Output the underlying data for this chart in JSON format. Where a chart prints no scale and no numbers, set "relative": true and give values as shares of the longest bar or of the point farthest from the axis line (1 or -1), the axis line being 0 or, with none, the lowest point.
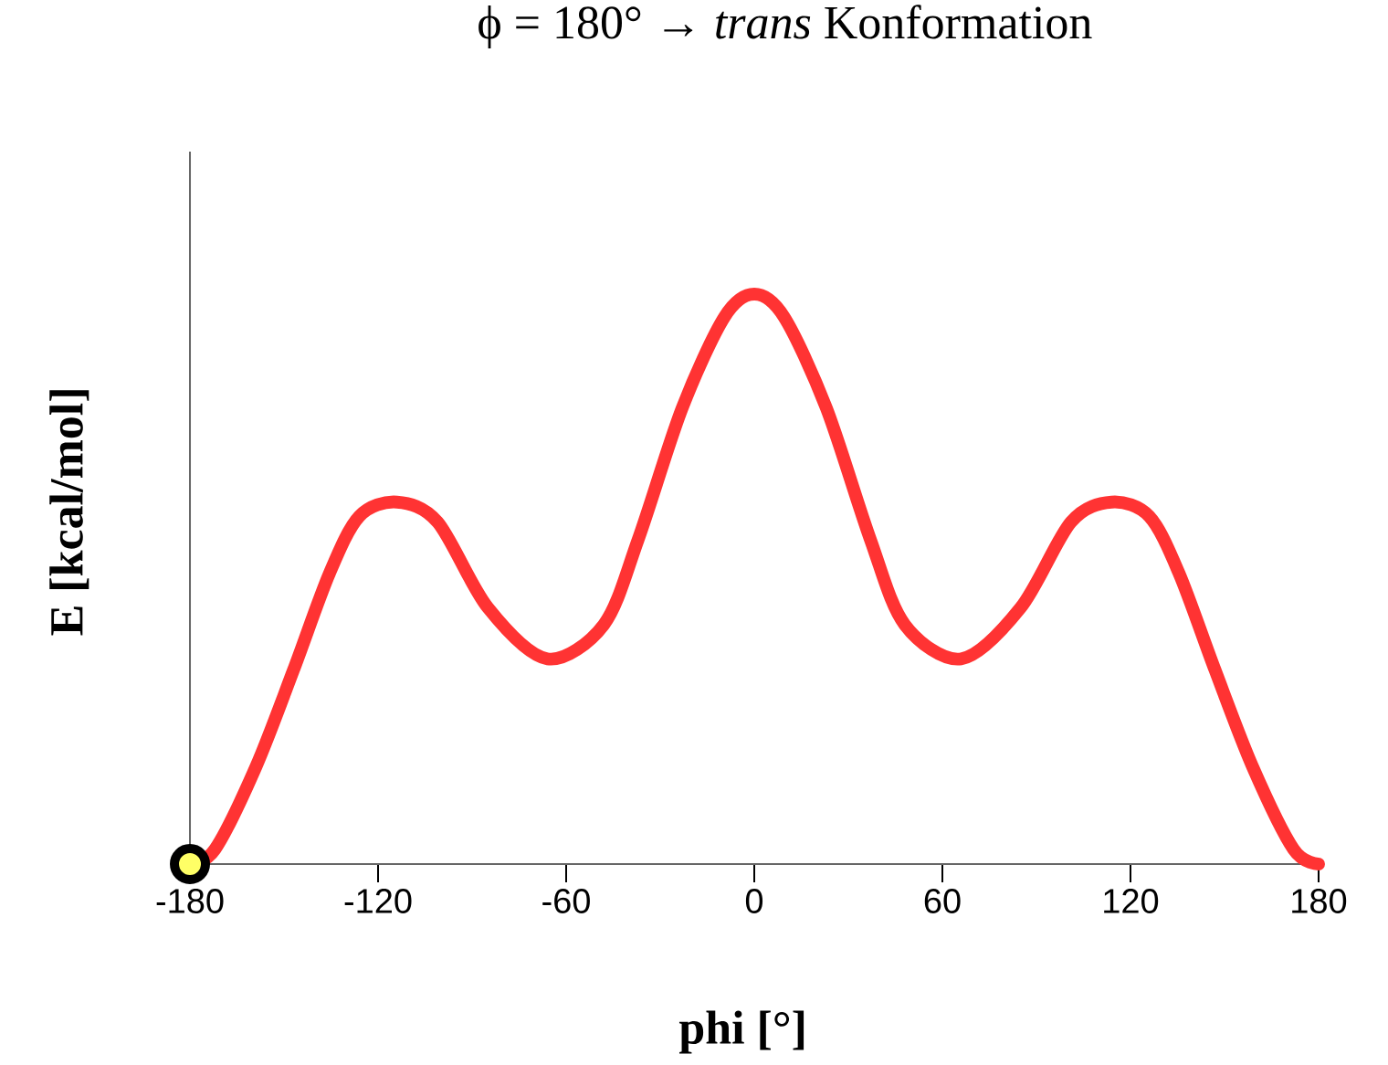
{
  "chart_data": {
    "type": "line",
    "title": "ϕ = 180° → *trans* Konformation",
    "xlabel": "phi [°]",
    "ylabel": "E [kcal/mol]",
    "relative": true,
    "xlim": [
      -180,
      180
    ],
    "xticks": [
      -180,
      -120,
      -60,
      0,
      60,
      120,
      180
    ],
    "grid": false,
    "marker": "none",
    "line_style": "solid",
    "series": [
      {
        "type": "line",
        "color": "#ff3333",
        "x": [
          -180,
          -172,
          -159,
          -147,
          -135.5,
          -126,
          -114,
          -101,
          -85,
          -66,
          -48,
          -37,
          -23,
          -9.5,
          0,
          9.5,
          23,
          37,
          48,
          66,
          85,
          101,
          114,
          126,
          135.5,
          147,
          159,
          172,
          180
        ],
        "values": [
          0,
          0.026,
          0.17,
          0.34,
          0.51,
          0.61,
          0.635,
          0.6,
          0.45,
          0.36,
          0.42,
          0.57,
          0.8,
          0.96,
          1,
          0.96,
          0.8,
          0.57,
          0.42,
          0.36,
          0.45,
          0.6,
          0.635,
          0.61,
          0.51,
          0.34,
          0.17,
          0.026,
          0
        ]
      },
      {
        "type": "scatter",
        "marker": "circle",
        "color": "#ffff66",
        "x": [
          -180
        ],
        "values": [
          0
        ]
      }
    ]
  }
}
